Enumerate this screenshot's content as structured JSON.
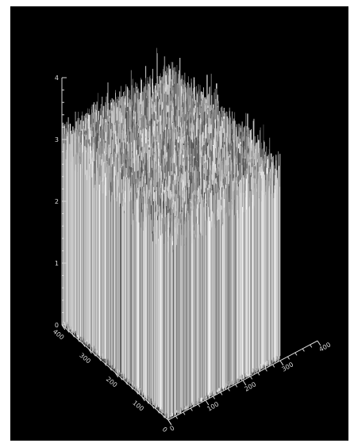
{
  "chart_data": {
    "type": "surface-3d",
    "style": "random-noise surface rendered as shaded vertical stalks",
    "title": "",
    "xlabel": "",
    "ylabel": "",
    "zlabel": "",
    "x_ticks": [
      "0",
      "100",
      "200",
      "300",
      "400"
    ],
    "y_ticks": [
      "0",
      "100",
      "200",
      "300",
      "400"
    ],
    "z_ticks": [
      "0",
      "1",
      "2",
      "3",
      "4"
    ],
    "xlim": [
      0,
      400
    ],
    "ylim": [
      0,
      400
    ],
    "zlim": [
      0,
      4
    ],
    "data_extent": {
      "x": [
        0,
        300
      ],
      "y": [
        0,
        400
      ]
    },
    "z_mean_top": 3.0,
    "z_range_top": [
      2.6,
      3.7
    ],
    "colors": {
      "background": "#000000",
      "axes": "#d9d9d9",
      "surface_light": "#e6e6e6",
      "surface_dark": "#3a3a3a"
    }
  }
}
